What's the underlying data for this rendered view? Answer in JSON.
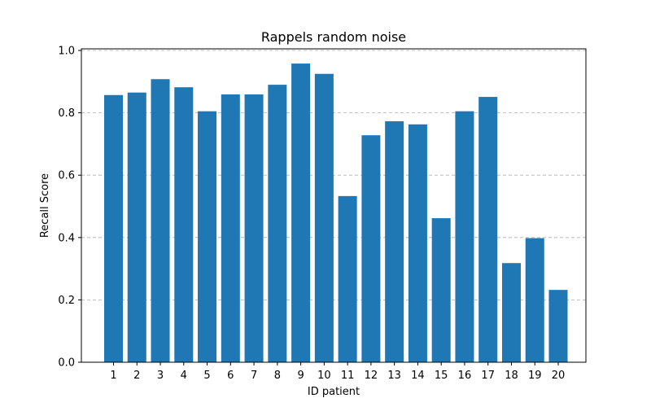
{
  "chart_data": {
    "type": "bar",
    "title": "Rappels random noise",
    "xlabel": "ID patient",
    "ylabel": "Recall Score",
    "categories": [
      "1",
      "2",
      "3",
      "4",
      "5",
      "6",
      "7",
      "8",
      "9",
      "10",
      "11",
      "12",
      "13",
      "14",
      "15",
      "16",
      "17",
      "18",
      "19",
      "20"
    ],
    "values": [
      0.857,
      0.865,
      0.908,
      0.882,
      0.805,
      0.859,
      0.859,
      0.89,
      0.958,
      0.925,
      0.533,
      0.728,
      0.773,
      0.763,
      0.462,
      0.805,
      0.851,
      0.318,
      0.398,
      0.232
    ],
    "ylim": [
      0,
      1.0
    ],
    "yticks": [
      "0.0",
      "0.2",
      "0.4",
      "0.6",
      "0.8",
      "1.0"
    ],
    "grid": "y-dashed",
    "bar_color": "#1f77b4"
  }
}
